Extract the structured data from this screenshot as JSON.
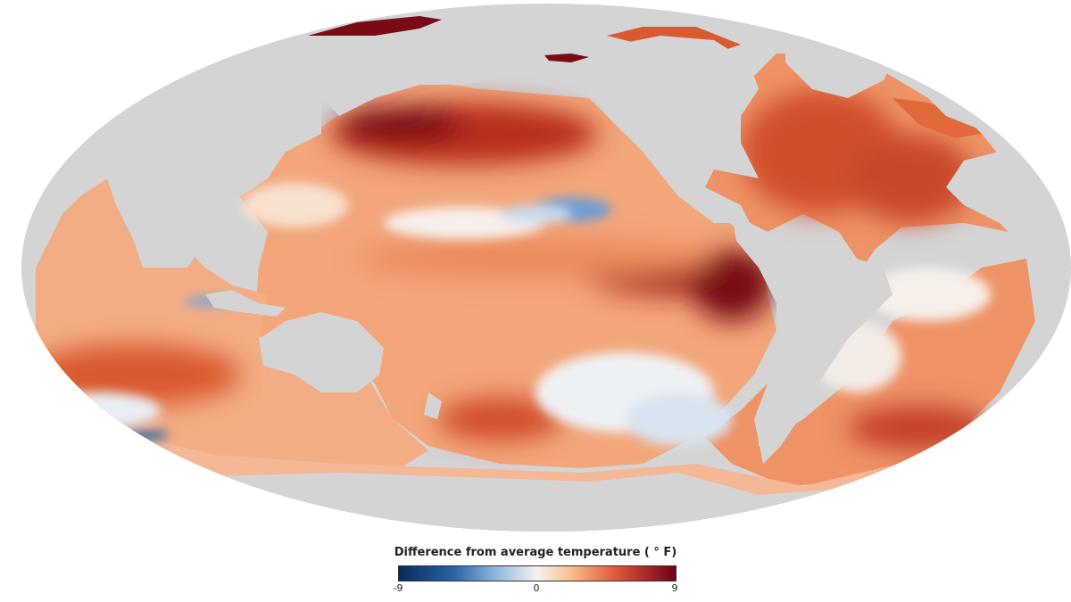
{
  "map": {
    "projection": "mollweide",
    "colors": {
      "land": "#d4d4d4",
      "cold_extreme": "#0a2a5c",
      "neutral": "#f6f2ee",
      "warm_extreme": "#6e0017"
    }
  },
  "legend": {
    "title": "Difference from average temperature ( ° F)",
    "min_label": "-9",
    "mid_label": "0",
    "max_label": "9",
    "min_value": -9,
    "max_value": 9
  }
}
